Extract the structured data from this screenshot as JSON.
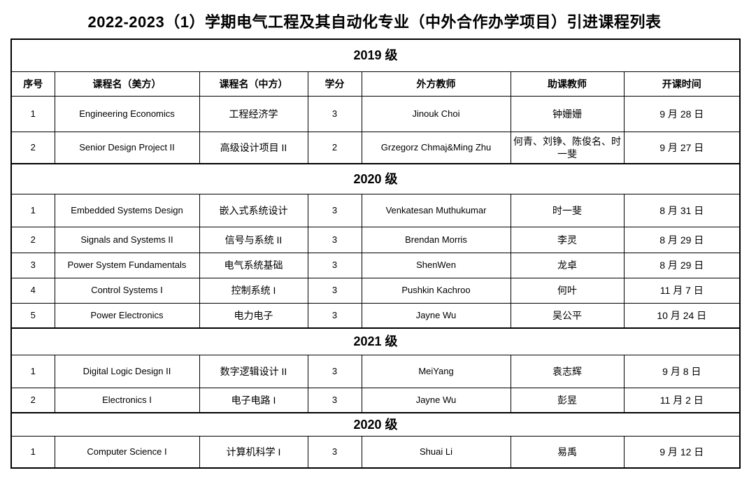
{
  "title": "2022-2023（1）学期电气工程及其自动化专业（中外合作办学项目）引进课程列表",
  "headers": [
    "序号",
    "课程名（美方）",
    "课程名（中方）",
    "学分",
    "外方教师",
    "助课教师",
    "开课时间"
  ],
  "sections": [
    {
      "label": "2019 级",
      "show_header": true,
      "rows": [
        [
          "1",
          "Engineering Economics",
          "工程经济学",
          "3",
          "Jinouk Choi",
          "钟姗姗",
          "9 月 28 日"
        ],
        [
          "2",
          "Senior Design Project II",
          "高级设计项目 II",
          "2",
          "Grzegorz Chmaj&Ming Zhu",
          "何青、刘铮、陈俊名、时一斐",
          "9 月 27 日"
        ]
      ]
    },
    {
      "label": "2020 级",
      "show_header": false,
      "rows": [
        [
          "1",
          "Embedded Systems Design",
          "嵌入式系统设计",
          "3",
          "Venkatesan Muthukumar",
          "时一斐",
          "8 月 31 日"
        ],
        [
          "2",
          "Signals and Systems II",
          "信号与系统 II",
          "3",
          "Brendan Morris",
          "李灵",
          "8 月 29 日"
        ],
        [
          "3",
          "Power System Fundamentals",
          "电气系统基础",
          "3",
          "ShenWen",
          "龙卓",
          "8 月 29 日"
        ],
        [
          "4",
          "Control Systems I",
          "控制系统 I",
          "3",
          "Pushkin Kachroo",
          "何叶",
          "11 月 7 日"
        ],
        [
          "5",
          "Power Electronics",
          "电力电子",
          "3",
          "Jayne Wu",
          "吴公平",
          "10 月 24 日"
        ]
      ]
    },
    {
      "label": "2021 级",
      "show_header": false,
      "rows": [
        [
          "1",
          "Digital Logic Design II",
          "数字逻辑设计 II",
          "3",
          "MeiYang",
          "袁志辉",
          "9 月 8 日"
        ],
        [
          "2",
          "Electronics I",
          "电子电路 I",
          "3",
          "Jayne Wu",
          "彭昱",
          "11 月 2 日"
        ]
      ]
    },
    {
      "label": "2020 级",
      "show_header": false,
      "rows": [
        [
          "1",
          "Computer Science I",
          "计算机科学 I",
          "3",
          "Shuai Li",
          "易禹",
          "9 月 12 日"
        ]
      ]
    }
  ]
}
